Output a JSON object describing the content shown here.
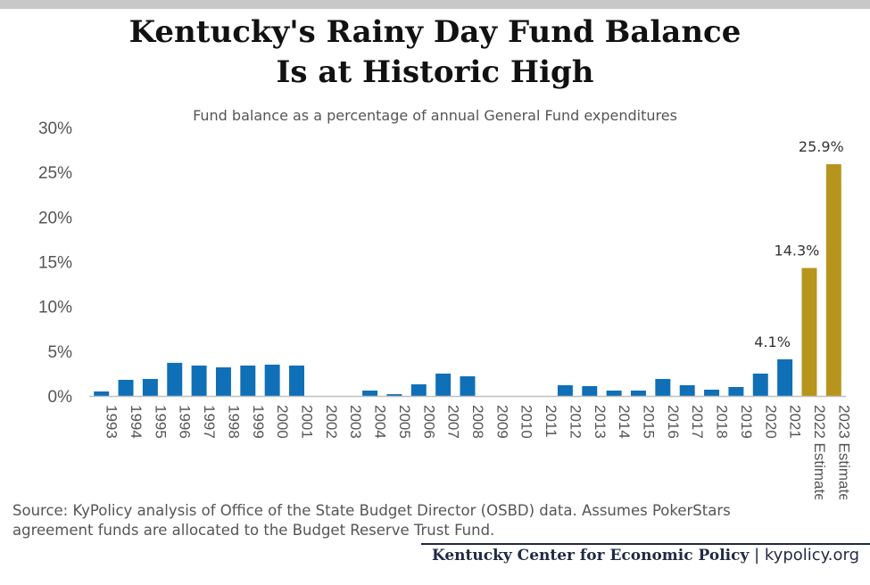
{
  "title_line1": "Kentucky's Rainy Day Fund Balance",
  "title_line2": "Is at Historic High",
  "subtitle": "Fund balance as a percentage of annual General Fund expenditures",
  "source": "Source: KyPolicy analysis of Office of the State Budget Director (OSBD) data. Assumes PokerStars agreement funds are allocated to the Budget Reserve Trust Fund.",
  "footer": {
    "org": "Kentucky Center for Economic Policy",
    "separator": "|",
    "site": "kypolicy.org"
  },
  "colors": {
    "actual": "#0f6fb7",
    "estimate": "#b7951c",
    "axis": "#bfbfbf",
    "top_bar": "#c8c8c8"
  },
  "chart_data": {
    "type": "bar",
    "categories": [
      "1993",
      "1994",
      "1995",
      "1996",
      "1997",
      "1998",
      "1999",
      "2000",
      "2001",
      "2002",
      "2003",
      "2004",
      "2005",
      "2006",
      "2007",
      "2008",
      "2009",
      "2010",
      "2011",
      "2012",
      "2013",
      "2014",
      "2015",
      "2016",
      "2017",
      "2018",
      "2019",
      "2020",
      "2021",
      "2022 Estimate",
      "2023 Estimate"
    ],
    "values": [
      0.5,
      1.8,
      1.9,
      3.7,
      3.4,
      3.2,
      3.4,
      3.5,
      3.4,
      0,
      0,
      0.6,
      0.2,
      1.3,
      2.5,
      2.2,
      0,
      0,
      0,
      1.2,
      1.1,
      0.6,
      0.6,
      1.9,
      1.2,
      0.7,
      1.0,
      2.5,
      4.1,
      14.3,
      25.9
    ],
    "estimate": [
      false,
      false,
      false,
      false,
      false,
      false,
      false,
      false,
      false,
      false,
      false,
      false,
      false,
      false,
      false,
      false,
      false,
      false,
      false,
      false,
      false,
      false,
      false,
      false,
      false,
      false,
      false,
      false,
      false,
      true,
      true
    ],
    "data_labels": [
      {
        "category": "2021",
        "text": "4.1%"
      },
      {
        "category": "2022 Estimate",
        "text": "14.3%"
      },
      {
        "category": "2023 Estimate",
        "text": "25.9%"
      }
    ],
    "ylim": [
      0,
      30
    ],
    "yticks": [
      0,
      5,
      10,
      15,
      20,
      25,
      30
    ],
    "ytick_labels": [
      "0%",
      "5%",
      "10%",
      "15%",
      "20%",
      "25%",
      "30%"
    ],
    "xlabel": "",
    "ylabel": "",
    "grid": false,
    "legend": "none"
  }
}
